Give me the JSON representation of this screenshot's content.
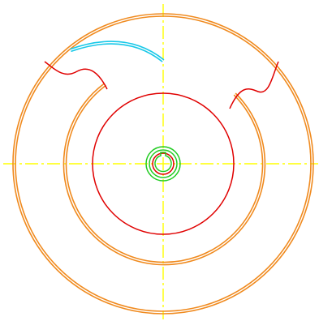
{
  "colors": {
    "background": "#ffffff",
    "centerline": "#ffff00",
    "outer_ring": "#f08a1e",
    "cutaway_edge": "#e00000",
    "bore_circle": "#e00000",
    "hub_ring": "#22cc22",
    "shaft": "#e00000",
    "key_arc": "#18c8e8",
    "key_arc_inner": "#ffffff"
  },
  "icons": {
    "centerline_style": "dash-dot"
  }
}
